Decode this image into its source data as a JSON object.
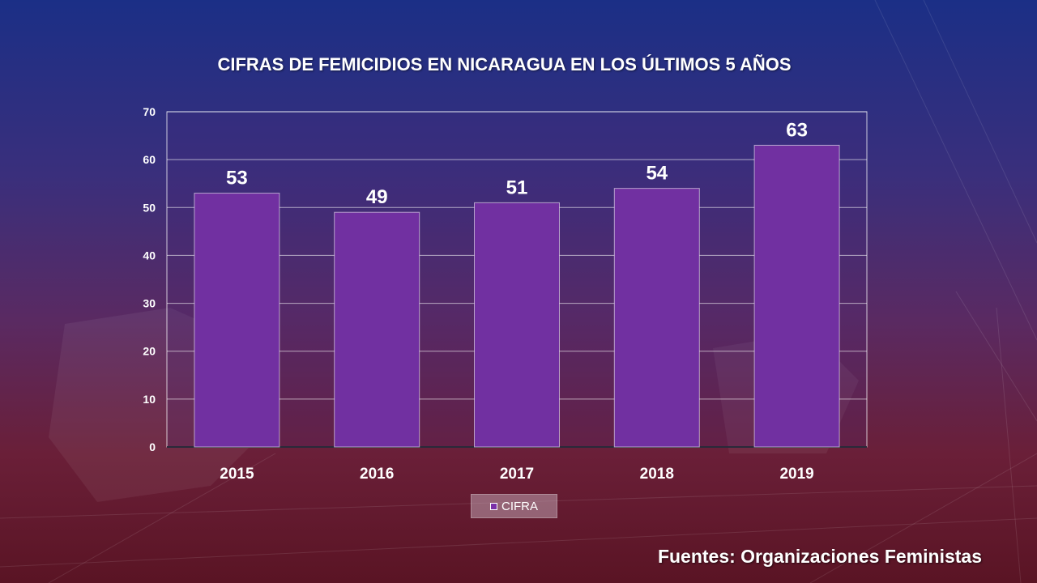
{
  "chart_data": {
    "type": "bar",
    "title": "CIFRAS DE FEMICIDIOS EN NICARAGUA EN LOS ÚLTIMOS 5 AÑOS",
    "categories": [
      "2015",
      "2016",
      "2017",
      "2018",
      "2019"
    ],
    "series": [
      {
        "name": "CIFRA",
        "values": [
          53,
          49,
          51,
          54,
          63
        ]
      }
    ],
    "ylim": [
      0,
      70
    ],
    "yticks": [
      0,
      10,
      20,
      30,
      40,
      50,
      60,
      70
    ],
    "grid": true,
    "legend_position": "bottom",
    "bar_color": "#7130a1",
    "data_labels": true
  },
  "source": "Fuentes: Organizaciones Feministas"
}
